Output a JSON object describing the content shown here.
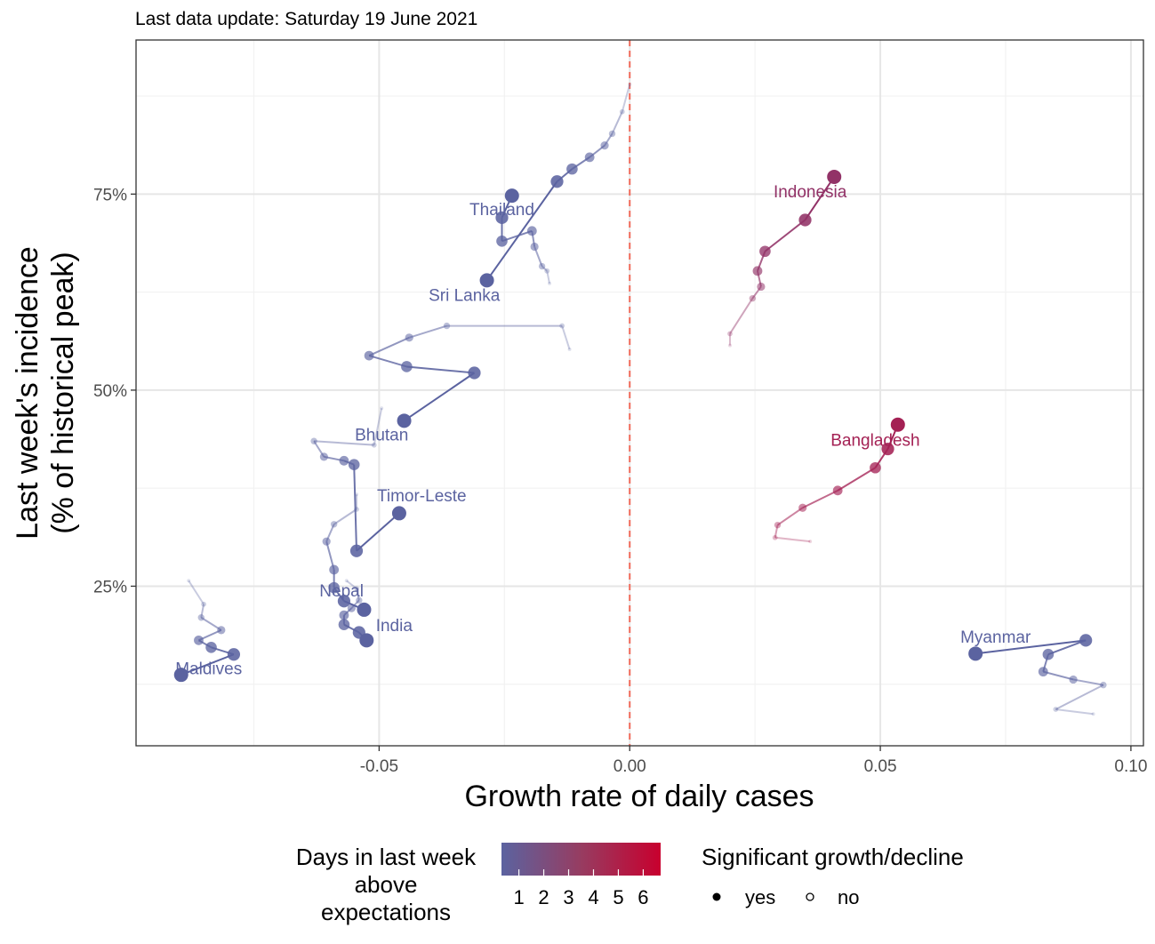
{
  "subtitle": "Last data update: Saturday 19 June 2021",
  "chart_data": {
    "type": "scatter",
    "xlabel": "Growth rate of daily cases",
    "ylabel_lines": [
      "Last week's incidence",
      "(% of historical peak)"
    ],
    "xlim": [
      -0.0985,
      0.1025
    ],
    "ylim": [
      0.0465,
      0.9465
    ],
    "x_ticks": [
      {
        "value": -0.05,
        "label": "-0.05"
      },
      {
        "value": 0.0,
        "label": "0.00"
      },
      {
        "value": 0.05,
        "label": "0.05"
      },
      {
        "value": 0.1,
        "label": "0.10"
      }
    ],
    "y_ticks": [
      {
        "value": 0.25,
        "label": "25%"
      },
      {
        "value": 0.5,
        "label": "50%"
      },
      {
        "value": 0.75,
        "label": "75%"
      }
    ],
    "reference_line": {
      "x": 0.0,
      "color": "#f26b5b",
      "style": "dashed"
    },
    "grid": true,
    "colors": {
      "low": "#5b63a0",
      "high": "#c8002e"
    },
    "legend": {
      "color_title_lines": [
        "Days in last week",
        "above",
        "expectations"
      ],
      "color_ticks": [
        "1",
        "2",
        "3",
        "4",
        "5",
        "6"
      ],
      "shape_title": "Significant growth/decline",
      "shape_items": [
        {
          "label": "yes",
          "filled": true
        },
        {
          "label": "no",
          "filled": false
        }
      ],
      "placement": "bottom"
    },
    "series": [
      {
        "name": "Thailand",
        "days": 0,
        "label": {
          "text": "Thailand",
          "x": -0.0255,
          "y": 0.723
        },
        "points": [
          [
            -0.016,
            0.636
          ],
          [
            -0.0165,
            0.652
          ],
          [
            -0.0175,
            0.658
          ],
          [
            -0.019,
            0.683
          ],
          [
            -0.0195,
            0.703
          ],
          [
            -0.0255,
            0.69
          ],
          [
            -0.0255,
            0.72
          ],
          [
            -0.0235,
            0.748
          ]
        ]
      },
      {
        "name": "Sri Lanka",
        "days": 0,
        "label": {
          "text": "Sri Lanka",
          "x": -0.033,
          "y": 0.614
        },
        "points": [
          [
            0.0,
            0.89
          ],
          [
            -0.0015,
            0.855
          ],
          [
            -0.0035,
            0.827
          ],
          [
            -0.005,
            0.812
          ],
          [
            -0.008,
            0.797
          ],
          [
            -0.0115,
            0.782
          ],
          [
            -0.0145,
            0.766
          ],
          [
            -0.0285,
            0.64
          ]
        ]
      },
      {
        "name": "Indonesia",
        "days": 3,
        "label": {
          "text": "Indonesia",
          "x": 0.036,
          "y": 0.746
        },
        "points": [
          [
            0.02,
            0.557
          ],
          [
            0.02,
            0.572
          ],
          [
            0.0245,
            0.617
          ],
          [
            0.0262,
            0.632
          ],
          [
            0.0255,
            0.652
          ],
          [
            0.027,
            0.677
          ],
          [
            0.035,
            0.717
          ],
          [
            0.0408,
            0.772
          ]
        ]
      },
      {
        "name": "Bhutan",
        "days": 0,
        "label": {
          "text": "Bhutan",
          "x": -0.0495,
          "y": 0.436
        },
        "points": [
          [
            -0.012,
            0.552
          ],
          [
            -0.0135,
            0.582
          ],
          [
            -0.0365,
            0.582
          ],
          [
            -0.044,
            0.567
          ],
          [
            -0.052,
            0.544
          ],
          [
            -0.0445,
            0.53
          ],
          [
            -0.031,
            0.522
          ],
          [
            -0.045,
            0.461
          ]
        ]
      },
      {
        "name": "Timor-Leste",
        "days": 0,
        "label": {
          "text": "Timor-Leste",
          "x": -0.0415,
          "y": 0.358
        },
        "points": [
          [
            -0.0495,
            0.477
          ],
          [
            -0.051,
            0.43
          ],
          [
            -0.063,
            0.435
          ],
          [
            -0.061,
            0.415
          ],
          [
            -0.057,
            0.41
          ],
          [
            -0.055,
            0.405
          ],
          [
            -0.0545,
            0.295
          ],
          [
            -0.046,
            0.343
          ]
        ]
      },
      {
        "name": "Bangladesh",
        "days": 4,
        "label": {
          "text": "Bangladesh",
          "x": 0.049,
          "y": 0.429
        },
        "points": [
          [
            0.036,
            0.307
          ],
          [
            0.029,
            0.312
          ],
          [
            0.0295,
            0.328
          ],
          [
            0.0345,
            0.35
          ],
          [
            0.0415,
            0.372
          ],
          [
            0.049,
            0.401
          ],
          [
            0.0515,
            0.425
          ],
          [
            0.0535,
            0.456
          ]
        ]
      },
      {
        "name": "Nepal",
        "days": 0,
        "label": {
          "text": "Nepal",
          "x": -0.0575,
          "y": 0.237
        },
        "points": [
          [
            -0.0545,
            0.367
          ],
          [
            -0.0545,
            0.348
          ],
          [
            -0.059,
            0.329
          ],
          [
            -0.0605,
            0.307
          ],
          [
            -0.059,
            0.271
          ],
          [
            -0.059,
            0.248
          ],
          [
            -0.057,
            0.231
          ],
          [
            -0.053,
            0.22
          ]
        ]
      },
      {
        "name": "India",
        "days": 0,
        "label": {
          "text": "India",
          "x": -0.047,
          "y": 0.193
        },
        "points": [
          [
            -0.0565,
            0.257
          ],
          [
            -0.0545,
            0.247
          ],
          [
            -0.054,
            0.232
          ],
          [
            -0.0555,
            0.222
          ],
          [
            -0.057,
            0.213
          ],
          [
            -0.057,
            0.201
          ],
          [
            -0.054,
            0.191
          ],
          [
            -0.0525,
            0.181
          ]
        ]
      },
      {
        "name": "Maldives",
        "days": 0,
        "label": {
          "text": "Maldives",
          "x": -0.084,
          "y": 0.138
        },
        "points": [
          [
            -0.088,
            0.257
          ],
          [
            -0.085,
            0.227
          ],
          [
            -0.0855,
            0.21
          ],
          [
            -0.0815,
            0.194
          ],
          [
            -0.086,
            0.181
          ],
          [
            -0.0835,
            0.172
          ],
          [
            -0.079,
            0.163
          ],
          [
            -0.0895,
            0.137
          ]
        ]
      },
      {
        "name": "Myanmar",
        "days": 0,
        "label": {
          "text": "Myanmar",
          "x": 0.073,
          "y": 0.178
        },
        "points": [
          [
            0.0925,
            0.087
          ],
          [
            0.085,
            0.093
          ],
          [
            0.0945,
            0.124
          ],
          [
            0.0885,
            0.131
          ],
          [
            0.0825,
            0.141
          ],
          [
            0.0835,
            0.163
          ],
          [
            0.091,
            0.181
          ],
          [
            0.069,
            0.164
          ]
        ]
      }
    ]
  }
}
